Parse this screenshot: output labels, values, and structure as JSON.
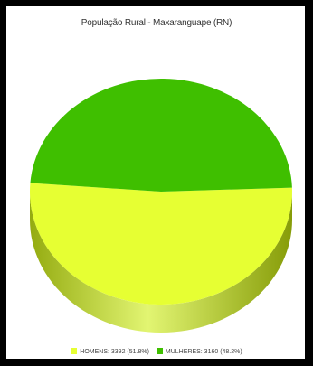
{
  "chart_data": {
    "type": "pie",
    "title": "População Rural - Maxaranguape (RN)",
    "slices": [
      {
        "label": "HOMENS",
        "value": 3392,
        "percent": 51.8,
        "color": "#e6ff33",
        "side_color": "#a9c21a"
      },
      {
        "label": "MULHERES",
        "value": 3160,
        "percent": 48.2,
        "color": "#3fbf00",
        "side_color": "#2c8a00"
      }
    ],
    "legend_position": "bottom",
    "legend": [
      {
        "text": "HOMENS: 3392 (51.8%)",
        "color": "#e6ff33"
      },
      {
        "text": "MULHERES: 3160 (48.2%)",
        "color": "#3fbf00"
      }
    ]
  }
}
